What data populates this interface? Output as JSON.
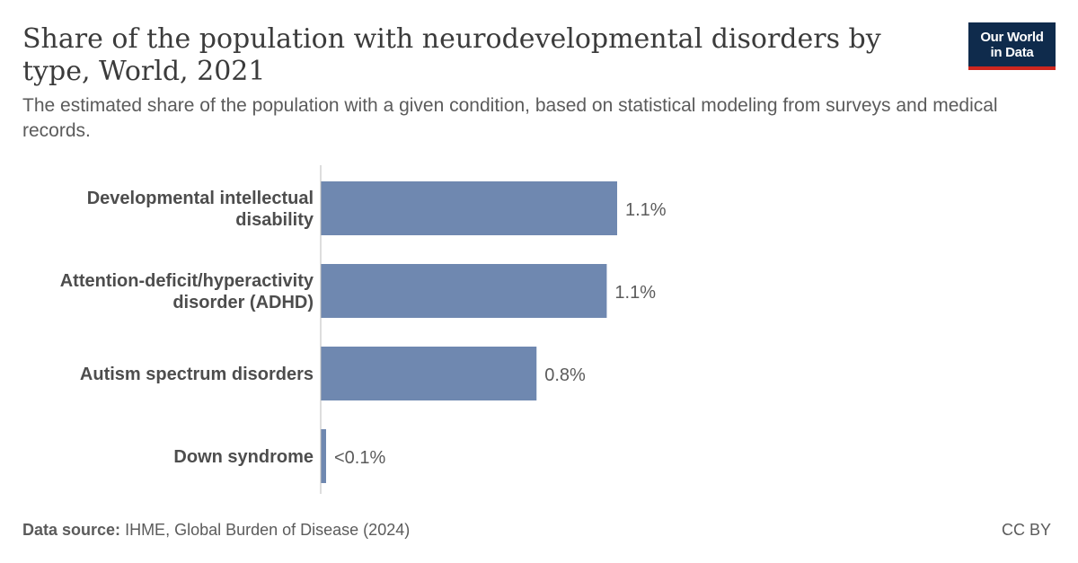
{
  "header": {
    "title": "Share of the population with neurodevelopmental disorders by type, World, 2021",
    "subtitle": "The estimated share of the population with a given condition, based on statistical modeling from surveys and medical records.",
    "logo_line1": "Our World",
    "logo_line2": "in Data"
  },
  "footer": {
    "source_label": "Data source:",
    "source_text": "IHME, Global Burden of Disease (2024)",
    "license": "CC BY"
  },
  "colors": {
    "bar": "#6f88b0",
    "axis": "#bbbbbb",
    "label": "#4d4d4d",
    "value_label": "#5b5b5b"
  },
  "chart_data": {
    "type": "bar",
    "orientation": "horizontal",
    "categories": [
      [
        "Developmental intellectual",
        "disability"
      ],
      [
        "Attention-deficit/hyperactivity",
        "disorder (ADHD)"
      ],
      [
        "Autism spectrum disorders"
      ],
      [
        "Down syndrome"
      ]
    ],
    "values": [
      1.14,
      1.1,
      0.83,
      0.02
    ],
    "value_labels": [
      "1.1%",
      "1.1%",
      "0.8%",
      "<0.1%"
    ],
    "unit": "%",
    "xlim": [
      0,
      1.14
    ],
    "grid": false,
    "legend": "none"
  }
}
